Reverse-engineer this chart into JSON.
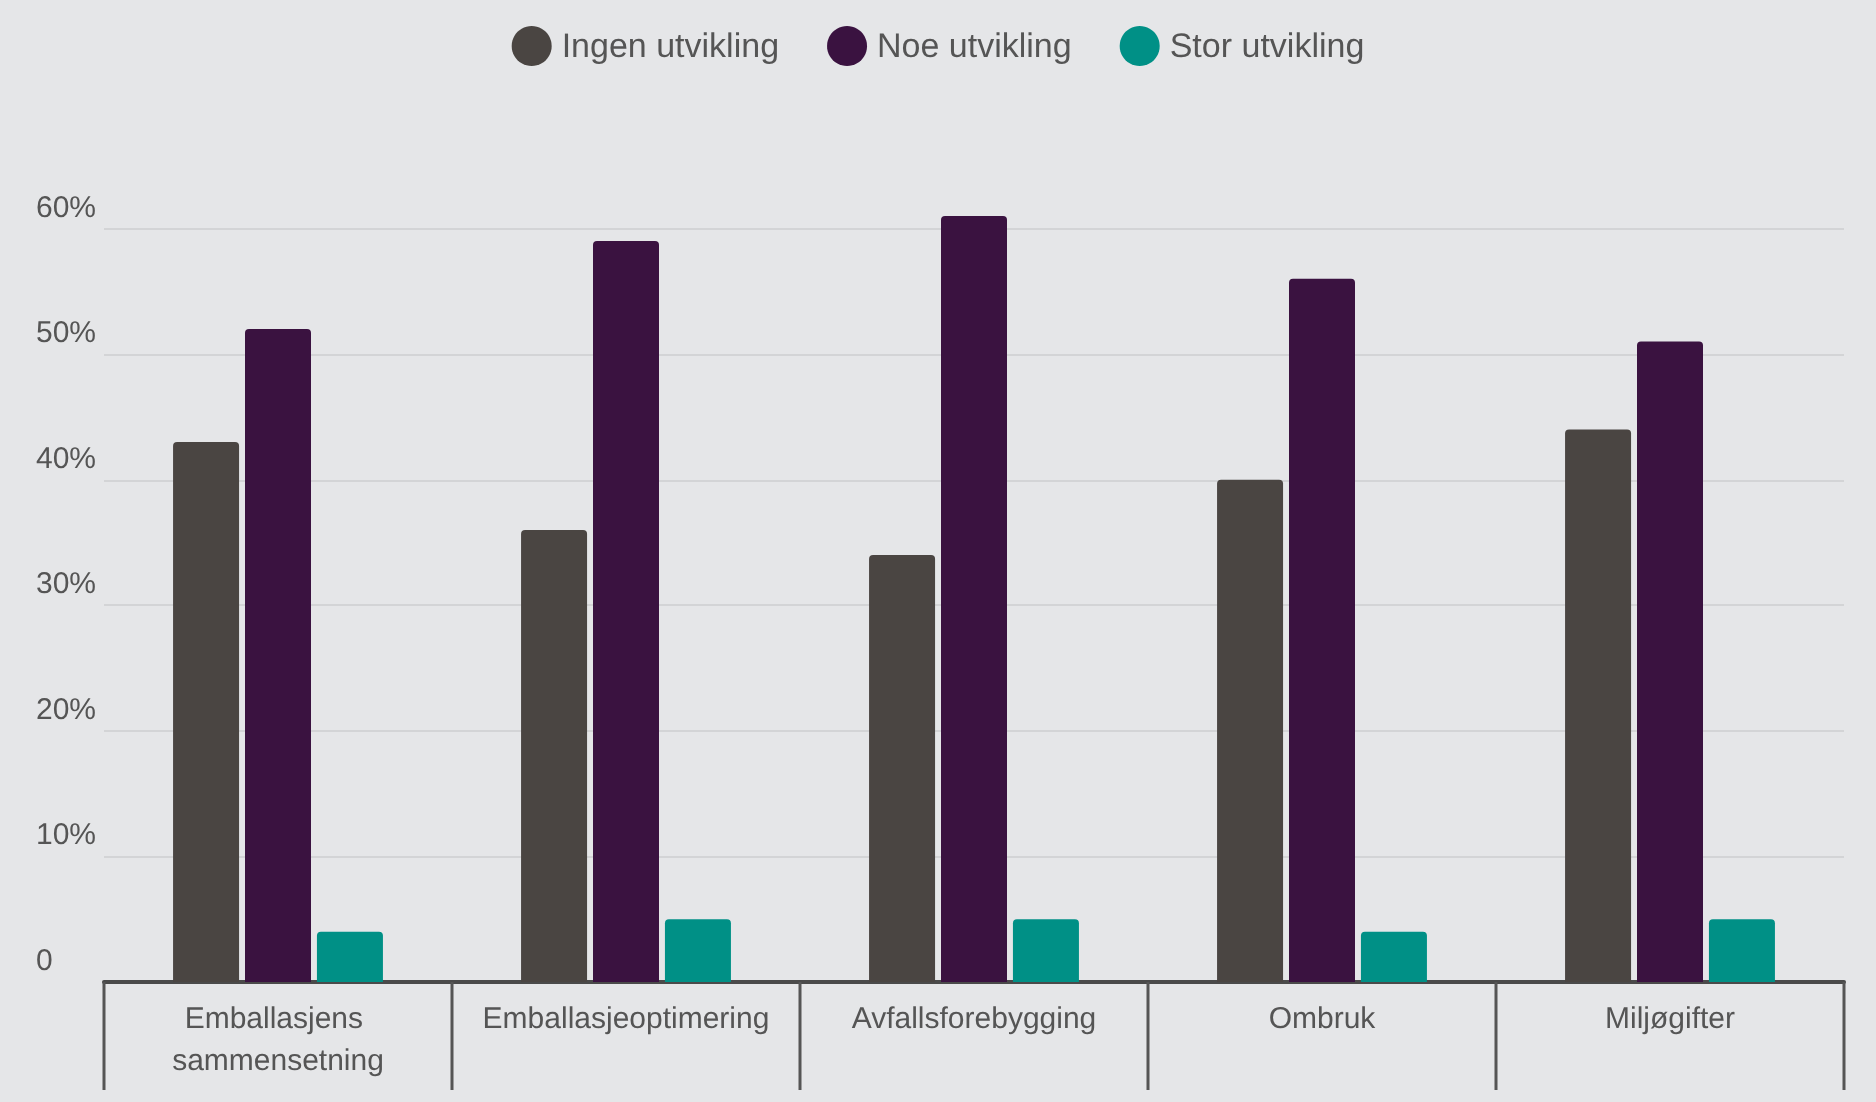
{
  "chart_data": {
    "type": "bar",
    "categories": [
      "Emballasjens sammensetning",
      "Emballasjeoptimering",
      "Avfallsforebygging",
      "Ombruk",
      "Miljøgifter"
    ],
    "series": [
      {
        "name": "Ingen utvikling",
        "color": "#4a4542",
        "values": [
          43,
          36,
          34,
          40,
          44
        ]
      },
      {
        "name": "Noe utvikling",
        "color": "#3a1240",
        "values": [
          52,
          59,
          61,
          56,
          51
        ]
      },
      {
        "name": "Stor utvikling",
        "color": "#009086",
        "values": [
          4,
          5,
          5,
          4,
          5
        ]
      }
    ],
    "ylim": [
      0,
      61
    ],
    "yticks": [
      0,
      {
        "value": 10,
        "label": "10%"
      },
      {
        "value": 20,
        "label": "20%"
      },
      {
        "value": 30,
        "label": "30%"
      },
      {
        "value": 40,
        "label": "40%"
      },
      {
        "value": 50,
        "label": "50%"
      },
      {
        "value": 60,
        "label": "60%"
      }
    ],
    "grid": "y",
    "legend": "top"
  }
}
